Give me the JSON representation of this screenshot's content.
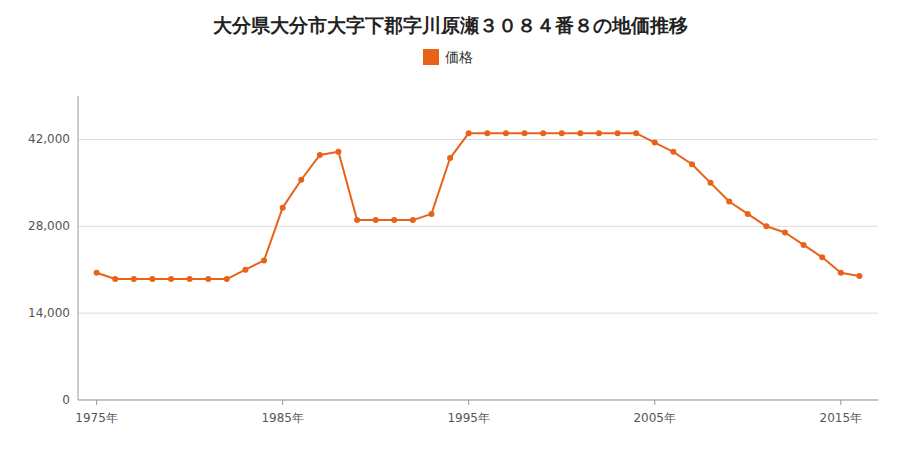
{
  "chart_data": {
    "type": "line",
    "title": "大分県大分市大字下郡字川原瀬３０８４番８の地価推移",
    "x": [
      1975,
      1976,
      1977,
      1978,
      1979,
      1980,
      1981,
      1982,
      1983,
      1984,
      1985,
      1986,
      1987,
      1988,
      1989,
      1990,
      1991,
      1992,
      1993,
      1994,
      1995,
      1996,
      1997,
      1998,
      1999,
      2000,
      2001,
      2002,
      2003,
      2004,
      2005,
      2006,
      2007,
      2008,
      2009,
      2010,
      2011,
      2012,
      2013,
      2014,
      2015,
      2016
    ],
    "series": [
      {
        "name": "価格",
        "color": "#e8621a",
        "marker": "circle",
        "values": [
          20500,
          19500,
          19500,
          19500,
          19500,
          19500,
          19500,
          19500,
          21000,
          22500,
          31000,
          35500,
          39500,
          40000,
          29000,
          29000,
          29000,
          29000,
          30000,
          39000,
          43000,
          43000,
          43000,
          43000,
          43000,
          43000,
          43000,
          43000,
          43000,
          43000,
          41500,
          40000,
          38000,
          35000,
          32000,
          30000,
          28000,
          27000,
          25000,
          23000,
          20500,
          20000
        ]
      }
    ],
    "xlim": [
      1974,
      2017
    ],
    "xticks": [
      {
        "value": 1975,
        "label": "1975年"
      },
      {
        "value": 1985,
        "label": "1985年"
      },
      {
        "value": 1995,
        "label": "1995年"
      },
      {
        "value": 2005,
        "label": "2005年"
      },
      {
        "value": 2015,
        "label": "2015年"
      }
    ],
    "ylim": [
      0,
      49000
    ],
    "yticks": [
      0,
      {
        "value": 14000,
        "label": "14,000"
      },
      {
        "value": 28000,
        "label": "28,000"
      },
      {
        "value": 42000,
        "label": "42,000"
      }
    ],
    "grid": true,
    "legend": "top"
  }
}
